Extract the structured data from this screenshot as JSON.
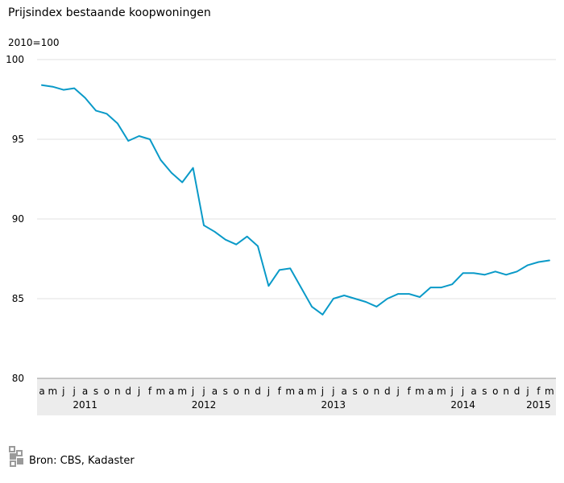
{
  "title": "Prijsindex bestaande koopwoningen",
  "unit_label": "2010=100",
  "source": "Bron: CBS, Kadaster",
  "chart_data": {
    "type": "line",
    "title": "Prijsindex bestaande koopwoningen",
    "ylabel": "2010=100",
    "ylim": [
      80,
      100
    ],
    "yticks": [
      80,
      85,
      90,
      95,
      100
    ],
    "grid": true,
    "month_labels": [
      "a",
      "m",
      "j",
      "j",
      "a",
      "s",
      "o",
      "n",
      "d",
      "j",
      "f",
      "m",
      "a",
      "m",
      "j",
      "j",
      "a",
      "s",
      "o",
      "n",
      "d",
      "j",
      "f",
      "m",
      "a",
      "m",
      "j",
      "j",
      "a",
      "s",
      "o",
      "n",
      "d",
      "j",
      "f",
      "m",
      "a",
      "m",
      "j",
      "j",
      "a",
      "s",
      "o",
      "n",
      "d",
      "j",
      "f",
      "m"
    ],
    "year_labels": [
      {
        "label": "2011",
        "month_index": 4
      },
      {
        "label": "2012",
        "month_index": 15
      },
      {
        "label": "2013",
        "month_index": 27
      },
      {
        "label": "2014",
        "month_index": 39
      },
      {
        "label": "2015",
        "month_index": 46
      }
    ],
    "series": [
      {
        "color": "#0a9ac8",
        "values": [
          98.4,
          98.3,
          98.1,
          98.2,
          97.6,
          96.8,
          96.6,
          96.0,
          94.9,
          95.2,
          95.0,
          93.7,
          92.9,
          92.3,
          93.2,
          89.6,
          89.2,
          88.7,
          88.4,
          88.9,
          88.3,
          85.8,
          86.8,
          86.9,
          85.7,
          84.5,
          84.0,
          85.0,
          85.2,
          85.0,
          84.8,
          84.5,
          85.0,
          85.3,
          85.3,
          85.1,
          85.7,
          85.7,
          85.9,
          86.6,
          86.6,
          86.5,
          86.7,
          86.5,
          86.7,
          87.1,
          87.3,
          87.4
        ]
      }
    ]
  }
}
